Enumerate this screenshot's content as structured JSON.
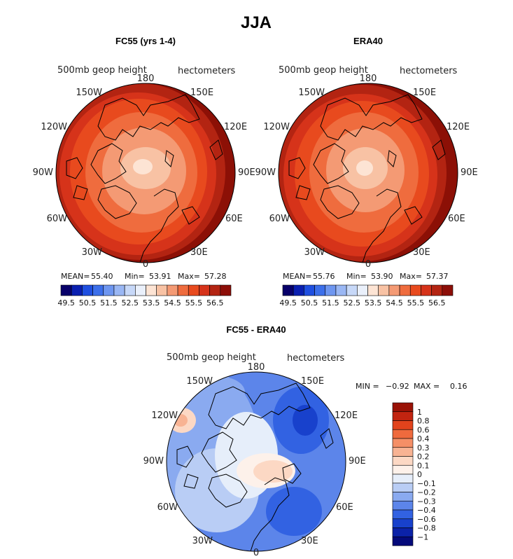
{
  "title": "JJA",
  "panels": [
    {
      "title": "FC55 (yrs 1-4)",
      "field_label": "500mb geop height",
      "units": "hectometers",
      "stats": {
        "mean_label": "MEAN=",
        "mean": "55.40",
        "min_label": "Min=",
        "min": "53.91",
        "max_label": "Max=",
        "max": "57.28"
      }
    },
    {
      "title": "ERA40",
      "field_label": "500mb geop height",
      "units": "hectometers",
      "stats": {
        "mean_label": "MEAN=",
        "mean": "55.76",
        "min_label": "Min=",
        "min": "53.90",
        "max_label": "Max=",
        "max": "57.37"
      }
    },
    {
      "title": "FC55 - ERA40",
      "field_label": "500mb geop height",
      "units": "hectometers",
      "stats": {
        "min_label": "MIN =",
        "min": "−0.92",
        "max_label": "MAX =",
        "max": "0.16"
      }
    }
  ],
  "longitude_labels": [
    "180",
    "150E",
    "120E",
    "90E",
    "60E",
    "30E",
    "0",
    "30W",
    "60W",
    "90W",
    "120W",
    "150W"
  ],
  "height_colorbar": {
    "labels": [
      "49.5",
      "50.5",
      "51.5",
      "52.5",
      "53.5",
      "54.5",
      "55.5",
      "56.5"
    ],
    "colors": [
      "#08006a",
      "#0a1fb0",
      "#1f4fe0",
      "#3c6fea",
      "#6e96f0",
      "#9ab7f4",
      "#c7d8f8",
      "#eaf0fb",
      "#fde4d4",
      "#f8c2a4",
      "#f49a74",
      "#ef6c3e",
      "#e84a1e",
      "#d6331a",
      "#b32412",
      "#8c0e08"
    ]
  },
  "diff_colorbar": {
    "labels": [
      "1",
      "0.8",
      "0.6",
      "0.4",
      "0.3",
      "0.2",
      "0.1",
      "0",
      "−0.1",
      "−0.2",
      "−0.3",
      "−0.4",
      "−0.6",
      "−0.8",
      "−1"
    ],
    "colors": [
      "#9a1206",
      "#c22410",
      "#e2431c",
      "#ef6a3d",
      "#f58f66",
      "#f8b393",
      "#fcd8c4",
      "#fdf1ea",
      "#e6eefa",
      "#b9cdf5",
      "#8aaaf0",
      "#5c85ea",
      "#3262e2",
      "#1841cc",
      "#0b22a8",
      "#040a7a"
    ]
  }
}
